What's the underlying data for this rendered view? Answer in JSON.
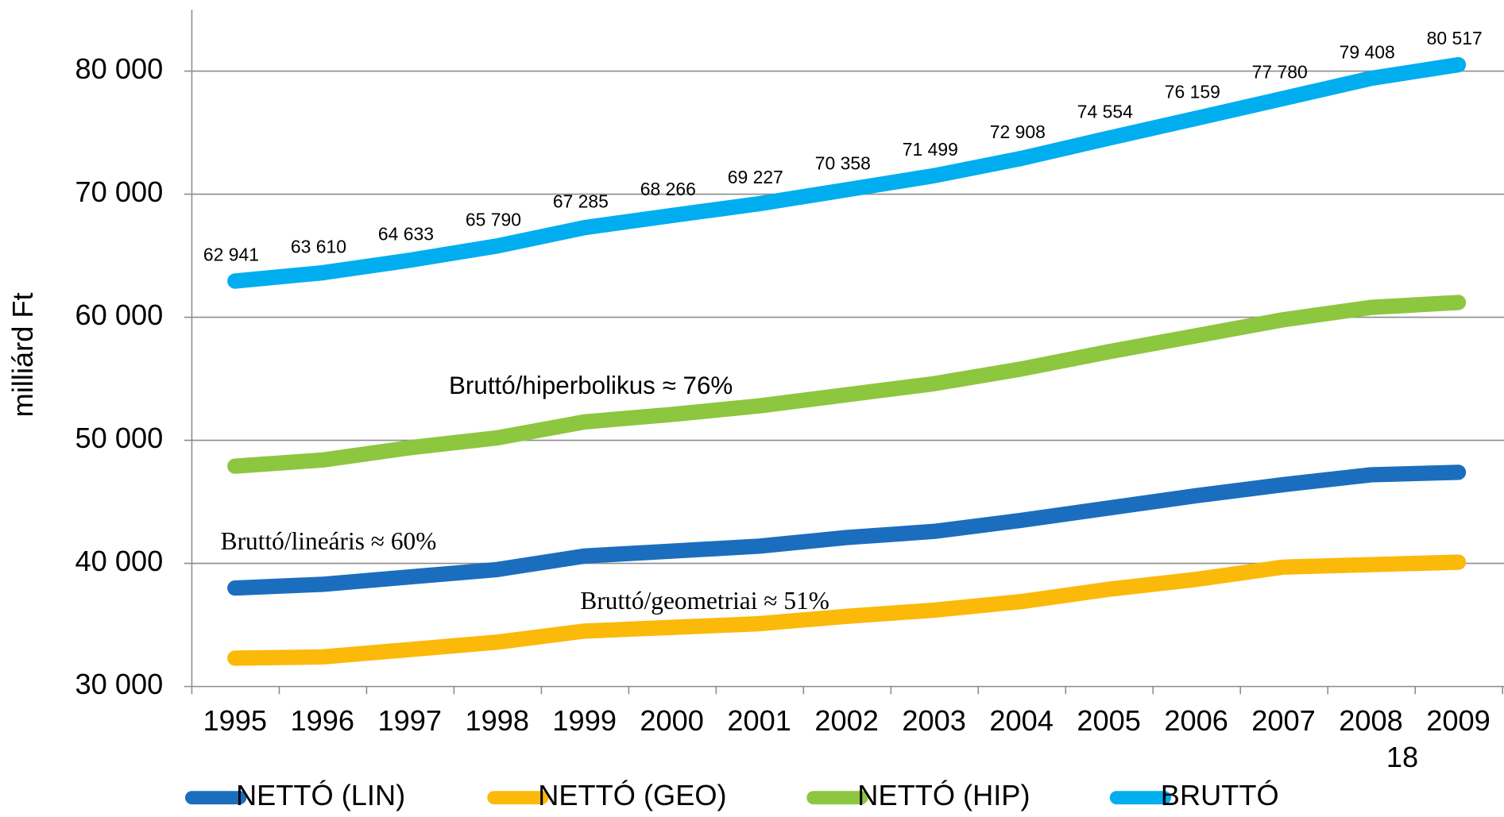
{
  "chart_data": {
    "type": "line",
    "y_label": "milliárd Ft",
    "categories": [
      "1995",
      "1996",
      "1997",
      "1998",
      "1999",
      "2000",
      "2001",
      "2002",
      "2003",
      "2004",
      "2005",
      "2006",
      "2007",
      "2008",
      "2009"
    ],
    "ylim": [
      30000,
      85000
    ],
    "yticks": [
      {
        "value": 30000,
        "label": "30 000"
      },
      {
        "value": 40000,
        "label": "40 000"
      },
      {
        "value": 50000,
        "label": "50 000"
      },
      {
        "value": 60000,
        "label": "60 000"
      },
      {
        "value": 70000,
        "label": "70 000"
      },
      {
        "value": 80000,
        "label": "80 000"
      }
    ],
    "grid": true,
    "legend": "bottom",
    "series": [
      {
        "name": "NETTÓ (LIN)",
        "color": "#1b6ebd",
        "values": [
          38000,
          38300,
          38900,
          39500,
          40600,
          41000,
          41400,
          42100,
          42600,
          43500,
          44500,
          45500,
          46400,
          47200,
          47400
        ]
      },
      {
        "name": "NETTÓ (GEO)",
        "color": "#fbb90a",
        "values": [
          32300,
          32400,
          33000,
          33600,
          34500,
          34800,
          35100,
          35700,
          36200,
          36900,
          37900,
          38700,
          39700,
          39900,
          40100
        ]
      },
      {
        "name": "NETTÓ (HIP)",
        "color": "#8dc63f",
        "values": [
          47900,
          48400,
          49400,
          50200,
          51500,
          52100,
          52800,
          53700,
          54600,
          55800,
          57200,
          58500,
          59800,
          60800,
          61200
        ]
      },
      {
        "name": "BRUTTÓ",
        "color": "#00aeef",
        "values": [
          62941,
          63610,
          64633,
          65790,
          67285,
          68266,
          69227,
          70358,
          71499,
          72908,
          74554,
          76159,
          77780,
          79408,
          80517
        ],
        "value_labels": [
          "62 941",
          "63 610",
          "64 633",
          "65 790",
          "67 285",
          "68 266",
          "69 227",
          "70 358",
          "71 499",
          "72 908",
          "74 554",
          "76 159",
          "77 780",
          "79 408",
          "80 517"
        ]
      }
    ],
    "annotations": [
      "Bruttó/hiperbolikus ≈ 76%",
      "Bruttó/lineáris ≈ 60%",
      "Bruttó/geometriai ≈ 51%"
    ],
    "page_number": "18"
  }
}
